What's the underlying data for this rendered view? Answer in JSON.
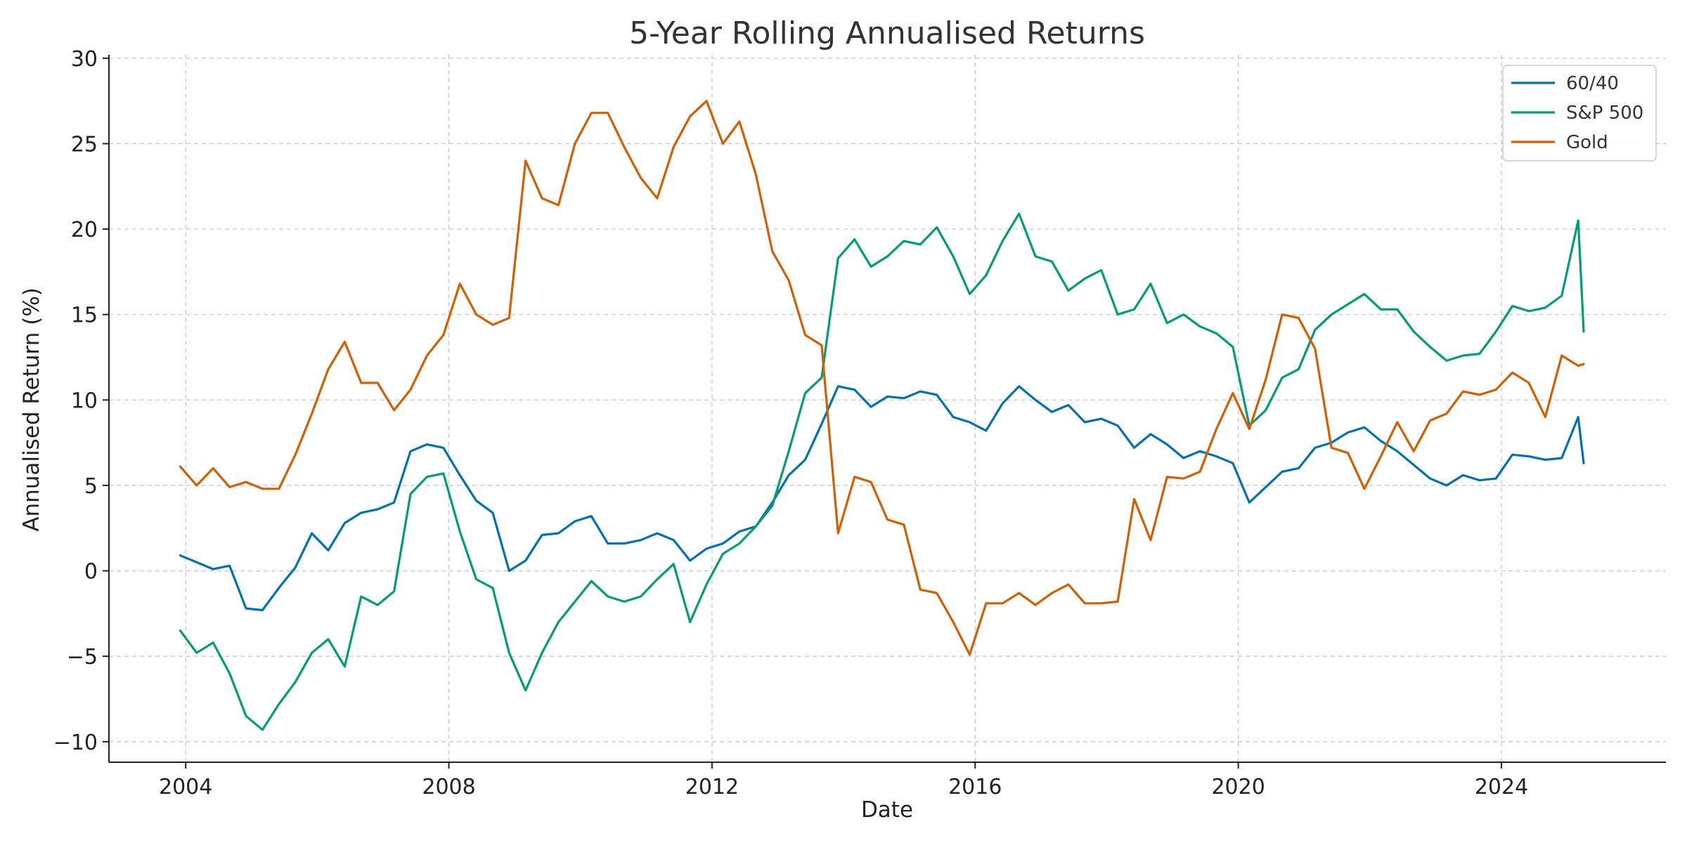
{
  "chart_data": {
    "type": "line",
    "title": "5-Year Rolling Annualised Returns",
    "xlabel": "Date",
    "ylabel": "Annualised Return (%)",
    "x_ticks": [
      "2004",
      "2008",
      "2012",
      "2016",
      "2020",
      "2024"
    ],
    "y_ticks": [
      "−10",
      "−5",
      "0",
      "5",
      "10",
      "15",
      "20",
      "25",
      "30"
    ],
    "xlim": [
      "2002-11",
      "2026-07"
    ],
    "ylim": [
      -11.2,
      30.2
    ],
    "grid": true,
    "legend_position": "top-right",
    "x": [
      "2003-12",
      "2004-03",
      "2004-06",
      "2004-09",
      "2004-12",
      "2005-03",
      "2005-06",
      "2005-09",
      "2005-12",
      "2006-03",
      "2006-06",
      "2006-09",
      "2006-12",
      "2007-03",
      "2007-06",
      "2007-09",
      "2007-12",
      "2008-03",
      "2008-06",
      "2008-09",
      "2008-12",
      "2009-03",
      "2009-06",
      "2009-09",
      "2009-12",
      "2010-03",
      "2010-06",
      "2010-09",
      "2010-12",
      "2011-03",
      "2011-06",
      "2011-09",
      "2011-12",
      "2012-03",
      "2012-06",
      "2012-09",
      "2012-12",
      "2013-03",
      "2013-06",
      "2013-09",
      "2013-12",
      "2014-03",
      "2014-06",
      "2014-09",
      "2014-12",
      "2015-03",
      "2015-06",
      "2015-09",
      "2015-12",
      "2016-03",
      "2016-06",
      "2016-09",
      "2016-12",
      "2017-03",
      "2017-06",
      "2017-09",
      "2017-12",
      "2018-03",
      "2018-06",
      "2018-09",
      "2018-12",
      "2019-03",
      "2019-06",
      "2019-09",
      "2019-12",
      "2020-03",
      "2020-06",
      "2020-09",
      "2020-12",
      "2021-03",
      "2021-06",
      "2021-09",
      "2021-12",
      "2022-03",
      "2022-06",
      "2022-09",
      "2022-12",
      "2023-03",
      "2023-06",
      "2023-09",
      "2023-12",
      "2024-03",
      "2024-06",
      "2024-09",
      "2024-12",
      "2025-03",
      "2025-04"
    ],
    "series": [
      {
        "name": "60/40",
        "color": "#0072B2",
        "values": [
          0.9,
          0.5,
          0.1,
          0.3,
          -2.2,
          -2.3,
          -1.0,
          0.2,
          2.2,
          1.2,
          2.8,
          3.4,
          3.6,
          4.0,
          7.0,
          7.4,
          7.2,
          5.6,
          4.1,
          3.4,
          0.0,
          0.6,
          2.1,
          2.2,
          2.9,
          3.2,
          1.6,
          1.6,
          1.8,
          2.2,
          1.8,
          0.6,
          1.3,
          1.6,
          2.3,
          2.6,
          4.0,
          5.6,
          6.5,
          8.6,
          10.8,
          10.6,
          9.6,
          10.2,
          10.1,
          10.5,
          10.3,
          9.0,
          8.7,
          8.2,
          9.8,
          10.8,
          10.0,
          9.3,
          9.7,
          8.7,
          8.9,
          8.5,
          7.2,
          8.0,
          7.4,
          6.6,
          7.0,
          6.7,
          6.3,
          4.0,
          4.9,
          5.8,
          6.0,
          7.2,
          7.5,
          8.1,
          8.4,
          7.6,
          7.0,
          6.2,
          5.4,
          5.0,
          5.6,
          5.3,
          5.4,
          6.8,
          6.7,
          6.5,
          6.6,
          9.0,
          6.3
        ]
      },
      {
        "name": "S&P 500",
        "color": "#009E73",
        "values": [
          -3.5,
          -4.8,
          -4.2,
          -6.0,
          -8.5,
          -9.3,
          -7.8,
          -6.5,
          -4.8,
          -4.0,
          -5.6,
          -1.5,
          -2.0,
          -1.2,
          4.5,
          5.5,
          5.7,
          2.3,
          -0.5,
          -1.0,
          -4.8,
          -7.0,
          -4.8,
          -3.0,
          -1.8,
          -0.6,
          -1.5,
          -1.8,
          -1.5,
          -0.5,
          0.4,
          -3.0,
          -0.8,
          1.0,
          1.6,
          2.6,
          3.8,
          7.0,
          10.4,
          11.3,
          18.3,
          19.4,
          17.8,
          18.4,
          19.3,
          19.1,
          20.1,
          18.4,
          16.2,
          17.3,
          19.3,
          20.9,
          18.4,
          18.1,
          16.4,
          17.1,
          17.6,
          15.0,
          15.3,
          16.8,
          14.5,
          15.0,
          14.3,
          13.9,
          13.1,
          8.5,
          9.4,
          11.3,
          11.8,
          14.1,
          15.0,
          15.6,
          16.2,
          15.3,
          15.3,
          14.0,
          13.1,
          12.3,
          12.6,
          12.7,
          14.0,
          15.5,
          15.2,
          15.4,
          16.1,
          20.5,
          14.0
        ]
      },
      {
        "name": "Gold",
        "color": "#D55E00",
        "values": [
          6.1,
          5.0,
          6.0,
          4.9,
          5.2,
          4.8,
          4.8,
          6.8,
          9.2,
          11.8,
          13.4,
          11.0,
          11.0,
          9.4,
          10.6,
          12.6,
          13.8,
          16.8,
          15.0,
          14.4,
          14.8,
          24.0,
          21.8,
          21.4,
          25.0,
          26.8,
          26.8,
          24.8,
          23.0,
          21.8,
          24.8,
          26.6,
          27.5,
          25.0,
          26.3,
          23.2,
          18.7,
          17.0,
          13.8,
          13.2,
          2.2,
          5.5,
          5.2,
          3.0,
          2.7,
          -1.1,
          -1.3,
          -3.0,
          -4.9,
          -1.9,
          -1.9,
          -1.3,
          -2.0,
          -1.3,
          -0.8,
          -1.9,
          -1.9,
          -1.8,
          4.2,
          1.8,
          5.5,
          5.4,
          5.8,
          8.3,
          10.4,
          8.3,
          11.2,
          15.0,
          14.8,
          13.0,
          7.2,
          6.9,
          4.8,
          6.7,
          8.7,
          7.0,
          8.8,
          9.2,
          10.5,
          10.3,
          10.6,
          11.6,
          11.0,
          9.0,
          12.6,
          12.0,
          12.1
        ]
      }
    ]
  }
}
